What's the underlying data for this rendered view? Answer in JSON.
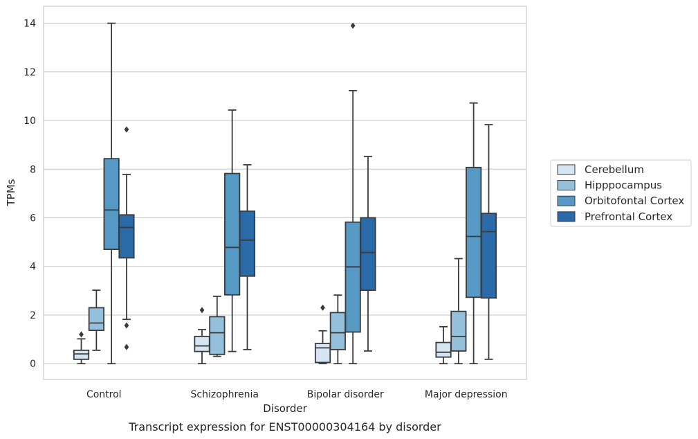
{
  "chart_data": {
    "type": "box",
    "caption": "Transcript expression for ENST00000304164 by disorder",
    "xlabel": "Disorder",
    "ylabel": "TPMs",
    "ylim": [
      -0.65,
      14.7
    ],
    "yticks": [
      0,
      2,
      4,
      6,
      8,
      10,
      12,
      14
    ],
    "grid": "horizontal",
    "legend_position": "right",
    "categories": [
      "Control",
      "Schizophrenia",
      "Bipolar disorder",
      "Major depression"
    ],
    "series": [
      {
        "name": "Cerebellum",
        "color": "#d6e5f3",
        "boxes": [
          {
            "whislo": 0.0,
            "q1": 0.18,
            "med": 0.4,
            "q3": 0.55,
            "whishi": 1.02,
            "fliers": [
              1.2
            ]
          },
          {
            "whislo": 0.0,
            "q1": 0.5,
            "med": 0.73,
            "q3": 1.12,
            "whishi": 1.4,
            "fliers": [
              2.2
            ]
          },
          {
            "whislo": 0.0,
            "q1": 0.05,
            "med": 0.65,
            "q3": 0.83,
            "whishi": 1.35,
            "fliers": [
              2.3
            ]
          },
          {
            "whislo": 0.0,
            "q1": 0.27,
            "med": 0.47,
            "q3": 0.87,
            "whishi": 1.52,
            "fliers": []
          }
        ]
      },
      {
        "name": "Hipppocampus",
        "color": "#94c0dc",
        "boxes": [
          {
            "whislo": 0.55,
            "q1": 1.37,
            "med": 1.67,
            "q3": 2.3,
            "whishi": 3.02,
            "fliers": []
          },
          {
            "whislo": 0.3,
            "q1": 0.38,
            "med": 1.27,
            "q3": 1.93,
            "whishi": 2.77,
            "fliers": []
          },
          {
            "whislo": 0.0,
            "q1": 0.58,
            "med": 1.27,
            "q3": 2.1,
            "whishi": 2.82,
            "fliers": []
          },
          {
            "whislo": 0.0,
            "q1": 0.52,
            "med": 1.12,
            "q3": 2.15,
            "whishi": 4.32,
            "fliers": []
          }
        ]
      },
      {
        "name": "Orbitofontal Cortex",
        "color": "#5799c5",
        "boxes": [
          {
            "whislo": 0.0,
            "q1": 4.7,
            "med": 6.32,
            "q3": 8.43,
            "whishi": 14.0,
            "fliers": []
          },
          {
            "whislo": 0.5,
            "q1": 2.83,
            "med": 4.78,
            "q3": 7.82,
            "whishi": 10.43,
            "fliers": []
          },
          {
            "whislo": 0.0,
            "q1": 1.3,
            "med": 3.98,
            "q3": 5.82,
            "whishi": 11.23,
            "fliers": [
              13.9
            ]
          },
          {
            "whislo": 0.0,
            "q1": 2.73,
            "med": 5.23,
            "q3": 8.07,
            "whishi": 10.72,
            "fliers": []
          }
        ]
      },
      {
        "name": "Prefrontal Cortex",
        "color": "#2a6aa8",
        "boxes": [
          {
            "whislo": 1.82,
            "q1": 4.35,
            "med": 5.6,
            "q3": 6.12,
            "whishi": 7.78,
            "fliers": [
              9.63,
              1.57,
              0.68
            ]
          },
          {
            "whislo": 0.58,
            "q1": 3.6,
            "med": 5.08,
            "q3": 6.27,
            "whishi": 8.18,
            "fliers": []
          },
          {
            "whislo": 0.52,
            "q1": 3.02,
            "med": 4.57,
            "q3": 6.0,
            "whishi": 8.52,
            "fliers": []
          },
          {
            "whislo": 0.18,
            "q1": 2.7,
            "med": 5.43,
            "q3": 6.18,
            "whishi": 9.83,
            "fliers": []
          }
        ]
      }
    ]
  }
}
